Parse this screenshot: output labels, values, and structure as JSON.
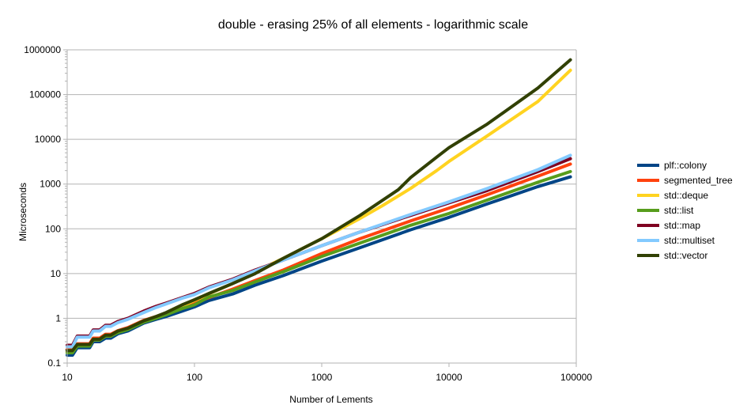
{
  "chart_data": {
    "type": "line",
    "title": "double - erasing 25% of all elements - logarithmic scale",
    "xlabel": "Number of Lements",
    "ylabel": "Microseconds",
    "x_scale": "log",
    "y_scale": "log",
    "xlim": [
      10,
      100000
    ],
    "ylim": [
      0.1,
      1000000
    ],
    "x_ticks": [
      "10",
      "100",
      "1000",
      "10000",
      "100000"
    ],
    "y_ticks": [
      "0.1",
      "1",
      "10",
      "100",
      "1000",
      "10000",
      "100000",
      "1000000"
    ],
    "grid": "horizontal",
    "legend_position": "right",
    "series": [
      {
        "name": "plf::colony",
        "color": "#004586",
        "x": [
          10,
          11,
          12,
          13,
          15,
          16,
          18,
          20,
          22,
          25,
          30,
          40,
          50,
          60,
          80,
          100,
          130,
          200,
          300,
          500,
          1000,
          2000,
          5000,
          10000,
          20000,
          50000,
          90000
        ],
        "y": [
          0.15,
          0.15,
          0.22,
          0.22,
          0.22,
          0.3,
          0.3,
          0.36,
          0.36,
          0.45,
          0.52,
          0.78,
          0.95,
          1.1,
          1.45,
          1.8,
          2.5,
          3.5,
          5.5,
          9,
          19,
          38,
          95,
          180,
          360,
          880,
          1450
        ]
      },
      {
        "name": "segmented_tree",
        "color": "#ff420e",
        "x": [
          10,
          11,
          12,
          13,
          15,
          16,
          18,
          20,
          22,
          25,
          30,
          40,
          50,
          60,
          80,
          100,
          130,
          200,
          300,
          500,
          1000,
          2000,
          5000,
          10000,
          20000,
          50000,
          90000
        ],
        "y": [
          0.2,
          0.2,
          0.27,
          0.27,
          0.27,
          0.36,
          0.36,
          0.44,
          0.44,
          0.53,
          0.62,
          0.9,
          1.1,
          1.3,
          1.75,
          2.2,
          2.9,
          4.5,
          7,
          12,
          28,
          60,
          150,
          290,
          580,
          1500,
          2800
        ]
      },
      {
        "name": "std::deque",
        "color": "#ffd320",
        "x": [
          10,
          11,
          12,
          13,
          15,
          16,
          18,
          20,
          22,
          25,
          30,
          40,
          50,
          60,
          80,
          100,
          130,
          200,
          300,
          500,
          1000,
          2000,
          3000,
          5000,
          8000,
          10000,
          20000,
          50000,
          90000
        ],
        "y": [
          0.18,
          0.18,
          0.25,
          0.25,
          0.25,
          0.33,
          0.33,
          0.4,
          0.4,
          0.5,
          0.58,
          0.85,
          1.05,
          1.3,
          1.9,
          2.5,
          3.5,
          6,
          11,
          22,
          60,
          170,
          330,
          800,
          2000,
          3200,
          12000,
          70000,
          350000
        ]
      },
      {
        "name": "std::list",
        "color": "#579d1c",
        "x": [
          10,
          11,
          12,
          13,
          15,
          16,
          18,
          20,
          22,
          25,
          30,
          40,
          50,
          60,
          80,
          100,
          130,
          200,
          300,
          500,
          1000,
          2000,
          5000,
          10000,
          20000,
          50000,
          90000
        ],
        "y": [
          0.17,
          0.17,
          0.24,
          0.24,
          0.24,
          0.33,
          0.33,
          0.4,
          0.4,
          0.48,
          0.56,
          0.82,
          1.0,
          1.2,
          1.65,
          2.0,
          3.0,
          4.2,
          6.5,
          11,
          24,
          48,
          120,
          220,
          440,
          1100,
          1900
        ]
      },
      {
        "name": "std::map",
        "color": "#7e0021",
        "x": [
          10,
          11,
          12,
          13,
          15,
          16,
          18,
          20,
          22,
          25,
          30,
          40,
          50,
          60,
          80,
          100,
          130,
          200,
          300,
          500,
          1000,
          2000,
          5000,
          10000,
          20000,
          50000,
          90000
        ],
        "y": [
          0.25,
          0.25,
          0.4,
          0.4,
          0.4,
          0.55,
          0.55,
          0.7,
          0.7,
          0.85,
          1.0,
          1.45,
          1.85,
          2.2,
          2.9,
          3.6,
          5.0,
          7.5,
          12,
          20,
          42,
          85,
          200,
          380,
          720,
          1900,
          3700
        ]
      },
      {
        "name": "std::multiset",
        "color": "#83caff",
        "x": [
          10,
          11,
          12,
          13,
          15,
          16,
          18,
          20,
          22,
          25,
          30,
          40,
          50,
          60,
          80,
          100,
          130,
          200,
          300,
          500,
          1000,
          2000,
          5000,
          10000,
          20000,
          50000,
          90000
        ],
        "y": [
          0.23,
          0.23,
          0.38,
          0.38,
          0.38,
          0.52,
          0.52,
          0.66,
          0.66,
          0.8,
          0.95,
          1.35,
          1.75,
          2.1,
          2.8,
          3.4,
          4.8,
          7.2,
          11.5,
          20,
          42,
          85,
          210,
          400,
          800,
          2100,
          4400
        ]
      },
      {
        "name": "std::vector",
        "color": "#314004",
        "x": [
          10,
          11,
          12,
          13,
          15,
          16,
          18,
          20,
          22,
          25,
          30,
          40,
          50,
          60,
          80,
          100,
          130,
          200,
          300,
          500,
          1000,
          2000,
          4000,
          5000,
          8000,
          10000,
          20000,
          50000,
          90000
        ],
        "y": [
          0.19,
          0.19,
          0.26,
          0.26,
          0.26,
          0.34,
          0.34,
          0.42,
          0.42,
          0.52,
          0.6,
          0.88,
          1.1,
          1.35,
          2.0,
          2.6,
          3.6,
          6,
          10,
          22,
          60,
          200,
          750,
          1400,
          4000,
          6500,
          22000,
          140000,
          600000
        ]
      }
    ]
  }
}
